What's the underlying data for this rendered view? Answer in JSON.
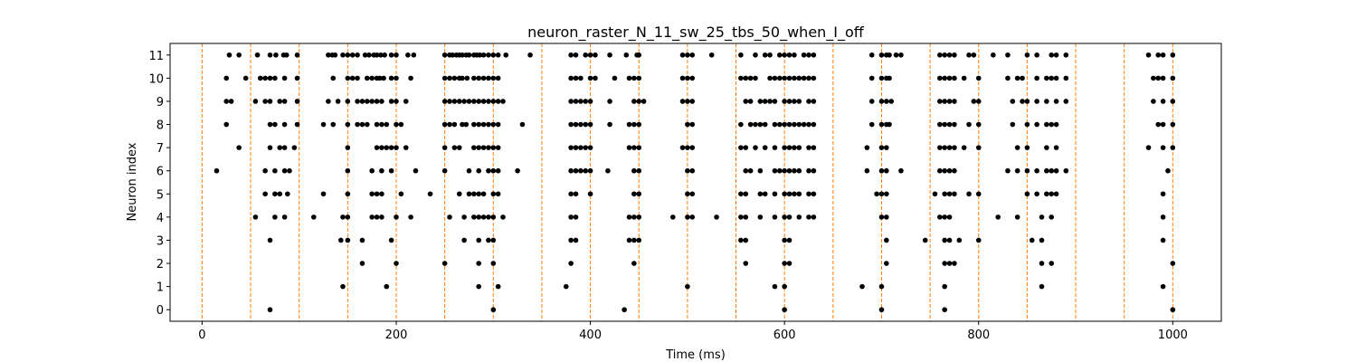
{
  "chart_data": {
    "type": "scatter",
    "title": "neuron_raster_N_11_sw_25_tbs_50_when_I_off",
    "xlabel": "Time (ms)",
    "ylabel": "Neuron index",
    "xlim": [
      -33,
      1050
    ],
    "ylim": [
      -0.5,
      11.5
    ],
    "x_ticks": [
      0,
      200,
      400,
      600,
      800,
      1000
    ],
    "y_ticks": [
      0,
      1,
      2,
      3,
      4,
      5,
      6,
      7,
      8,
      9,
      10,
      11
    ],
    "grid": false,
    "marker_color": "#000000",
    "event_line_color": "#ff7f0e",
    "event_lines_x": [
      0,
      50,
      100,
      150,
      200,
      250,
      300,
      350,
      400,
      450,
      500,
      550,
      600,
      650,
      700,
      750,
      800,
      850,
      900,
      950,
      1000
    ],
    "spikes": [
      {
        "neuron": 11,
        "times": [
          28,
          38,
          57,
          70,
          76,
          84,
          87,
          98,
          130,
          134,
          137,
          145,
          150,
          155,
          160,
          168,
          172,
          177,
          180,
          184,
          188,
          195,
          200,
          212,
          218,
          250,
          255,
          258,
          262,
          265,
          268,
          272,
          275,
          280,
          283,
          286,
          290,
          295,
          300,
          305,
          313,
          338,
          380,
          385,
          395,
          400,
          405,
          420,
          437,
          448,
          450,
          495,
          500,
          505,
          525,
          555,
          570,
          580,
          585,
          595,
          600,
          605,
          610,
          620,
          625,
          630,
          690,
          700,
          705,
          708,
          715,
          720,
          760,
          765,
          770,
          775,
          790,
          795,
          815,
          830,
          850,
          860,
          875,
          880,
          890,
          975,
          985,
          990,
          1000
        ]
      },
      {
        "neuron": 10,
        "times": [
          25,
          45,
          60,
          65,
          70,
          75,
          85,
          98,
          135,
          150,
          155,
          160,
          170,
          175,
          180,
          183,
          187,
          195,
          200,
          215,
          250,
          255,
          260,
          265,
          268,
          273,
          280,
          285,
          290,
          295,
          300,
          305,
          380,
          385,
          390,
          400,
          405,
          425,
          440,
          445,
          450,
          495,
          500,
          505,
          555,
          560,
          565,
          570,
          585,
          590,
          595,
          600,
          605,
          610,
          615,
          620,
          625,
          630,
          690,
          700,
          705,
          708,
          760,
          765,
          770,
          775,
          785,
          800,
          830,
          840,
          845,
          860,
          870,
          875,
          880,
          890,
          980,
          985,
          990,
          1000
        ]
      },
      {
        "neuron": 9,
        "times": [
          25,
          30,
          55,
          65,
          70,
          80,
          85,
          98,
          130,
          140,
          150,
          160,
          165,
          170,
          175,
          180,
          185,
          195,
          200,
          210,
          250,
          255,
          260,
          265,
          270,
          275,
          280,
          285,
          290,
          295,
          300,
          305,
          310,
          380,
          385,
          390,
          395,
          400,
          420,
          445,
          450,
          455,
          495,
          500,
          505,
          560,
          565,
          575,
          580,
          585,
          590,
          600,
          605,
          610,
          615,
          625,
          630,
          690,
          700,
          705,
          710,
          760,
          765,
          770,
          775,
          795,
          800,
          835,
          845,
          850,
          860,
          870,
          880,
          890,
          980,
          990,
          1000
        ]
      },
      {
        "neuron": 8,
        "times": [
          25,
          70,
          75,
          85,
          98,
          125,
          135,
          150,
          160,
          165,
          170,
          180,
          185,
          190,
          200,
          205,
          250,
          255,
          260,
          268,
          272,
          280,
          285,
          290,
          295,
          300,
          305,
          330,
          380,
          385,
          390,
          395,
          400,
          420,
          440,
          445,
          450,
          500,
          505,
          555,
          565,
          570,
          575,
          580,
          590,
          595,
          600,
          605,
          610,
          615,
          620,
          625,
          630,
          690,
          700,
          705,
          708,
          760,
          765,
          770,
          775,
          790,
          800,
          835,
          850,
          860,
          870,
          875,
          880,
          985,
          990,
          1000
        ]
      },
      {
        "neuron": 7,
        "times": [
          38,
          70,
          80,
          85,
          95,
          150,
          180,
          185,
          190,
          195,
          200,
          210,
          250,
          260,
          265,
          280,
          285,
          290,
          295,
          300,
          305,
          380,
          385,
          390,
          395,
          400,
          440,
          445,
          450,
          495,
          500,
          505,
          555,
          560,
          570,
          580,
          590,
          600,
          605,
          610,
          615,
          625,
          630,
          685,
          700,
          705,
          760,
          765,
          770,
          775,
          785,
          800,
          840,
          850,
          870,
          880,
          975,
          990,
          1000
        ]
      },
      {
        "neuron": 6,
        "times": [
          15,
          65,
          75,
          85,
          90,
          150,
          175,
          185,
          195,
          220,
          250,
          275,
          285,
          295,
          300,
          305,
          325,
          380,
          385,
          390,
          395,
          400,
          418,
          445,
          450,
          500,
          505,
          560,
          565,
          575,
          590,
          595,
          600,
          605,
          610,
          615,
          625,
          630,
          685,
          700,
          705,
          720,
          760,
          765,
          770,
          775,
          830,
          840,
          850,
          860,
          870,
          875,
          880,
          890,
          995
        ]
      },
      {
        "neuron": 5,
        "times": [
          65,
          75,
          80,
          88,
          125,
          150,
          175,
          180,
          185,
          205,
          235,
          265,
          275,
          280,
          285,
          290,
          300,
          305,
          380,
          385,
          400,
          445,
          450,
          500,
          505,
          555,
          560,
          575,
          580,
          590,
          600,
          605,
          610,
          615,
          625,
          630,
          695,
          700,
          705,
          755,
          765,
          770,
          775,
          790,
          800,
          850,
          860,
          870,
          875,
          880,
          990
        ]
      },
      {
        "neuron": 4,
        "times": [
          55,
          75,
          85,
          115,
          145,
          150,
          175,
          180,
          185,
          200,
          215,
          255,
          270,
          280,
          285,
          290,
          295,
          300,
          310,
          380,
          385,
          440,
          445,
          450,
          485,
          500,
          505,
          530,
          555,
          560,
          575,
          590,
          600,
          605,
          615,
          625,
          630,
          700,
          705,
          760,
          765,
          770,
          820,
          840,
          865,
          875,
          990
        ]
      },
      {
        "neuron": 3,
        "times": [
          70,
          143,
          150,
          165,
          195,
          270,
          285,
          295,
          300,
          380,
          385,
          440,
          445,
          450,
          555,
          560,
          600,
          605,
          705,
          745,
          765,
          770,
          780,
          800,
          855,
          865,
          990
        ]
      },
      {
        "neuron": 2,
        "times": [
          165,
          200,
          250,
          285,
          300,
          380,
          445,
          560,
          600,
          605,
          705,
          765,
          770,
          775,
          865,
          875,
          1000
        ]
      },
      {
        "neuron": 1,
        "times": [
          145,
          190,
          285,
          305,
          375,
          500,
          590,
          600,
          680,
          700,
          765,
          865,
          990
        ]
      },
      {
        "neuron": 0,
        "times": [
          70,
          300,
          435,
          600,
          700,
          765,
          1000
        ]
      }
    ]
  }
}
